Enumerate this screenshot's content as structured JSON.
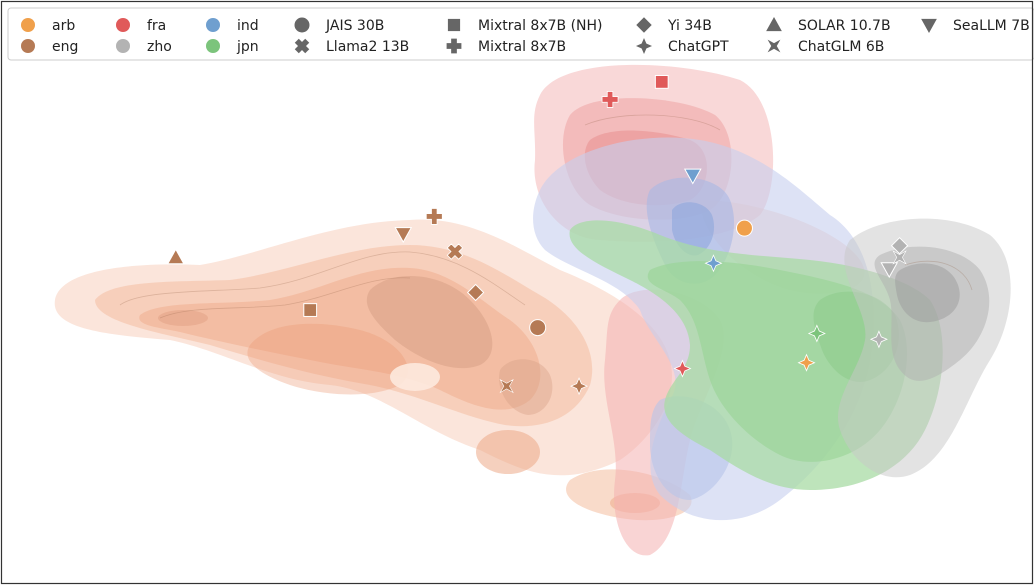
{
  "chart_data": {
    "type": "scatter",
    "title": "",
    "xlabel": "",
    "ylabel": "",
    "grid": false,
    "axes_visible": false,
    "legend_placement": "top",
    "languages": [
      {
        "code": "arb",
        "color": "#f0a04b"
      },
      {
        "code": "eng",
        "color": "#b57a55"
      },
      {
        "code": "fra",
        "color": "#e05a5a"
      },
      {
        "code": "zho",
        "color": "#b3b3b3"
      },
      {
        "code": "ind",
        "color": "#6f9fcf"
      },
      {
        "code": "jpn",
        "color": "#7cc47c"
      }
    ],
    "models": [
      {
        "name": "JAIS 30B",
        "marker": "circle"
      },
      {
        "name": "Llama2 13B",
        "marker": "x"
      },
      {
        "name": "Mixtral 8x7B (NH)",
        "marker": "square"
      },
      {
        "name": "Mixtral 8x7B",
        "marker": "plus"
      },
      {
        "name": "Yi 34B",
        "marker": "diamond"
      },
      {
        "name": "ChatGPT",
        "marker": "star4"
      },
      {
        "name": "SOLAR 10.7B",
        "marker": "triangle-up"
      },
      {
        "name": "ChatGLM 6B",
        "marker": "bowtie"
      },
      {
        "name": "SeaLLM 7B",
        "marker": "triangle-down"
      }
    ],
    "xlim": [
      0,
      100
    ],
    "ylim": [
      0,
      100
    ],
    "points": [
      {
        "lang": "eng",
        "model": "SOLAR 10.7B",
        "x": 17,
        "y": 56
      },
      {
        "lang": "eng",
        "model": "Mixtral 8x7B (NH)",
        "x": 30,
        "y": 47
      },
      {
        "lang": "eng",
        "model": "SeaLLM 7B",
        "x": 39,
        "y": 60
      },
      {
        "lang": "eng",
        "model": "Mixtral 8x7B",
        "x": 42,
        "y": 63
      },
      {
        "lang": "eng",
        "model": "Llama2 13B",
        "x": 44,
        "y": 57
      },
      {
        "lang": "eng",
        "model": "Yi 34B",
        "x": 46,
        "y": 50
      },
      {
        "lang": "eng",
        "model": "JAIS 30B",
        "x": 52,
        "y": 44
      },
      {
        "lang": "eng",
        "model": "ChatGLM 6B",
        "x": 49,
        "y": 34
      },
      {
        "lang": "eng",
        "model": "ChatGPT",
        "x": 56,
        "y": 34
      },
      {
        "lang": "fra",
        "model": "Mixtral 8x7B",
        "x": 59,
        "y": 83
      },
      {
        "lang": "fra",
        "model": "Mixtral 8x7B (NH)",
        "x": 64,
        "y": 86
      },
      {
        "lang": "fra",
        "model": "ChatGPT",
        "x": 66,
        "y": 37
      },
      {
        "lang": "ind",
        "model": "SeaLLM 7B",
        "x": 67,
        "y": 70
      },
      {
        "lang": "ind",
        "model": "ChatGPT",
        "x": 69,
        "y": 55
      },
      {
        "lang": "arb",
        "model": "JAIS 30B",
        "x": 72,
        "y": 61
      },
      {
        "lang": "arb",
        "model": "ChatGPT",
        "x": 78,
        "y": 38
      },
      {
        "lang": "jpn",
        "model": "ChatGPT",
        "x": 79,
        "y": 43
      },
      {
        "lang": "zho",
        "model": "ChatGPT",
        "x": 85,
        "y": 42
      },
      {
        "lang": "zho",
        "model": "SeaLLM 7B",
        "x": 86,
        "y": 54
      },
      {
        "lang": "zho",
        "model": "Yi 34B",
        "x": 87,
        "y": 58
      },
      {
        "lang": "zho",
        "model": "ChatGLM 6B",
        "x": 87,
        "y": 56
      }
    ]
  }
}
